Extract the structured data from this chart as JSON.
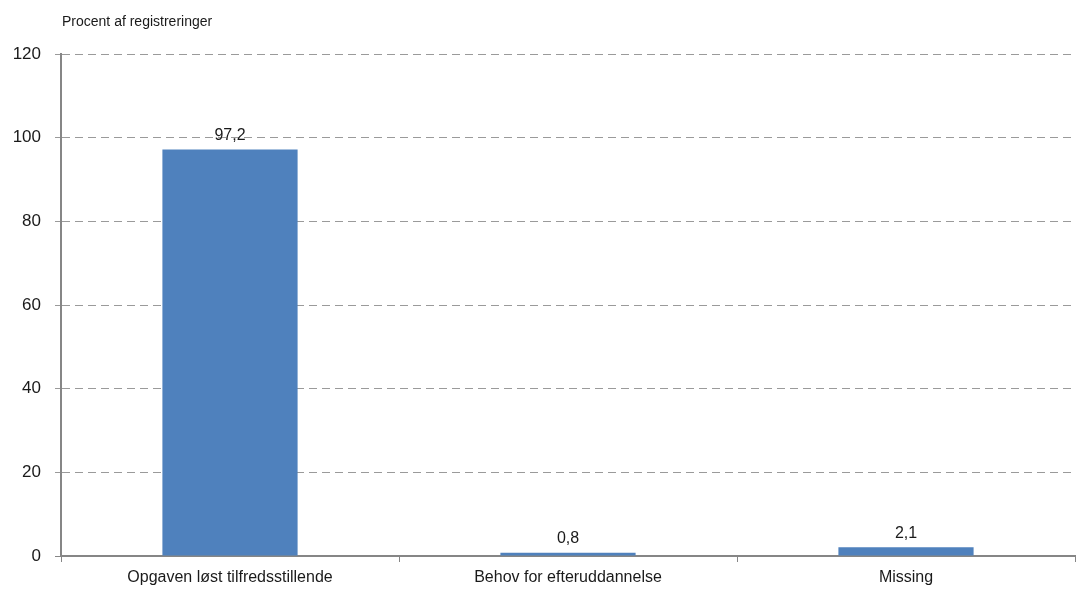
{
  "chart_data": {
    "type": "bar",
    "ylabel": "Procent af registreringer",
    "categories": [
      "Opgaven løst tilfredsstillende",
      "Behov for efteruddannelse",
      "Missing"
    ],
    "values": [
      97.2,
      0.8,
      2.1
    ],
    "value_labels": [
      "97,2",
      "0,8",
      "2,1"
    ],
    "color": "#4f81bd",
    "ylim": [
      0,
      120
    ],
    "yticks": [
      0,
      20,
      40,
      60,
      80,
      100,
      120
    ],
    "grid": "y"
  }
}
